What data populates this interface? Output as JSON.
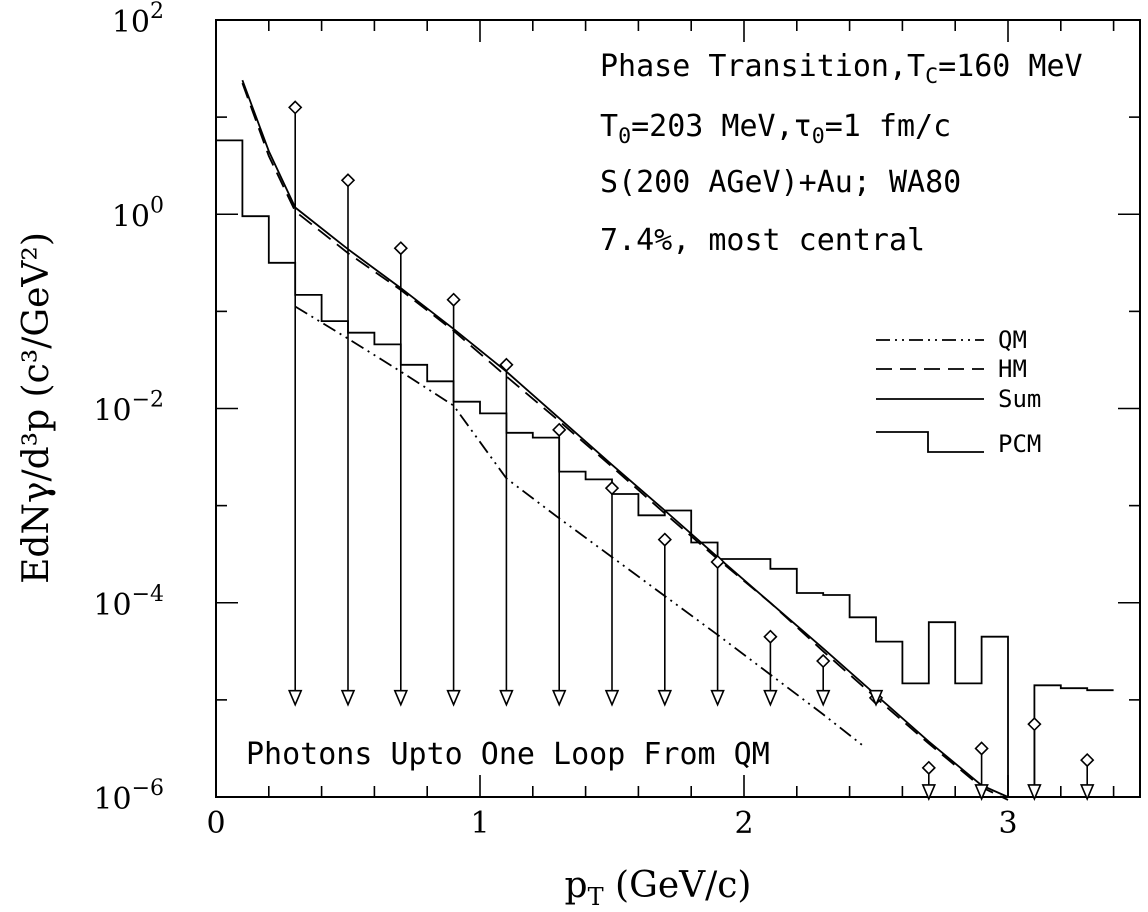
{
  "chart_data": {
    "type": "line",
    "xlabel_main": "p",
    "xlabel_sub": "T",
    "xlabel_rest": " (GeV/c)",
    "ylabel": "EdNγ/d³p (c³/GeV²)",
    "xlim": [
      0,
      3.5
    ],
    "ylim_log10": [
      -6,
      2
    ],
    "y_log_scale": true,
    "x_ticks": [
      {
        "value": 0,
        "label": "0"
      },
      {
        "value": 1,
        "label": "1"
      },
      {
        "value": 2,
        "label": "2"
      },
      {
        "value": 3,
        "label": "3"
      }
    ],
    "y_ticks": [
      {
        "exp": 2,
        "base": "10",
        "power": "2"
      },
      {
        "exp": 0,
        "base": "10",
        "power": "0"
      },
      {
        "exp": -2,
        "base": "10",
        "power": "−2"
      },
      {
        "exp": -4,
        "base": "10",
        "power": "−4"
      },
      {
        "exp": -6,
        "base": "10",
        "power": "−6"
      }
    ],
    "annotations": {
      "line1": "Phase Transition,T",
      "line1_sub": "C",
      "line1_rest": "=160 MeV",
      "line2_a": "T",
      "line2_a_sub": "0",
      "line2_b": "=203 MeV,τ",
      "line2_b_sub": "0",
      "line2_c": "=1 fm/c",
      "line3": "S(200 AGeV)+Au; WA80",
      "line4": "7.4%, most central",
      "bottom": "Photons Upto One Loop From QM"
    },
    "legend": {
      "placement": "right",
      "entries": [
        {
          "name": "QM",
          "style": "dash-dot"
        },
        {
          "name": "HM",
          "style": "dashed"
        },
        {
          "name": "Sum",
          "style": "solid"
        },
        {
          "name": "PCM",
          "style": "histogram"
        }
      ]
    },
    "series": [
      {
        "name": "QM",
        "x": [
          0.3,
          0.5,
          0.7,
          0.9,
          1.1,
          1.3,
          1.5,
          1.7,
          1.9,
          2.1,
          2.3,
          2.45
        ],
        "log10_y": [
          -0.95,
          -1.28,
          -1.62,
          -1.97,
          -2.72,
          -3.13,
          -3.53,
          -3.93,
          -4.33,
          -4.74,
          -5.15,
          -5.47
        ]
      },
      {
        "name": "HM",
        "x": [
          0.1,
          0.2,
          0.3,
          0.5,
          0.7,
          0.9,
          1.1,
          1.3,
          1.5,
          1.7,
          1.9,
          2.1,
          2.3,
          2.5,
          2.7,
          2.9,
          3.0
        ],
        "log10_y": [
          1.35,
          0.6,
          0.03,
          -0.4,
          -0.78,
          -1.2,
          -1.67,
          -2.13,
          -2.6,
          -3.08,
          -3.55,
          -4.0,
          -4.5,
          -4.98,
          -5.45,
          -5.9,
          -6.03
        ]
      },
      {
        "name": "Sum",
        "x": [
          0.1,
          0.2,
          0.3,
          0.5,
          0.7,
          0.9,
          1.1,
          1.3,
          1.5,
          1.7,
          1.9,
          2.1,
          2.3,
          2.5,
          2.7,
          2.9,
          3.0
        ],
        "log10_y": [
          1.38,
          0.65,
          0.07,
          -0.36,
          -0.76,
          -1.18,
          -1.62,
          -2.1,
          -2.58,
          -3.05,
          -3.53,
          -4.0,
          -4.47,
          -4.95,
          -5.43,
          -5.88,
          -6.0
        ]
      },
      {
        "name": "PCM",
        "bin_edges": [
          0.0,
          0.1,
          0.2,
          0.3,
          0.4,
          0.5,
          0.6,
          0.7,
          0.8,
          0.9,
          1.0,
          1.1,
          1.2,
          1.3,
          1.4,
          1.5,
          1.6,
          1.7,
          1.8,
          1.9,
          2.0,
          2.1,
          2.2,
          2.3,
          2.4,
          2.5,
          2.6,
          2.7,
          2.8,
          2.9,
          3.0,
          3.1,
          3.2,
          3.3,
          3.4
        ],
        "log10_y": [
          0.76,
          -0.02,
          -0.5,
          -0.83,
          -1.1,
          -1.22,
          -1.34,
          -1.55,
          -1.72,
          -1.93,
          -2.05,
          -2.25,
          -2.3,
          -2.65,
          -2.73,
          -2.88,
          -3.1,
          -3.05,
          -3.38,
          -3.55,
          -3.55,
          -3.65,
          -3.9,
          -3.92,
          -4.15,
          -4.4,
          -4.83,
          -4.2,
          -4.83,
          -4.35,
          -6.0,
          -4.85,
          -4.88,
          -4.9
        ]
      }
    ],
    "upper_limits": {
      "name": "WA80",
      "x": [
        0.3,
        0.5,
        0.7,
        0.9,
        1.1,
        1.3,
        1.5,
        1.7,
        1.9,
        2.1,
        2.3,
        2.5,
        2.7,
        2.9,
        3.1,
        3.3
      ],
      "log10_y": [
        1.1,
        0.35,
        -0.35,
        -0.88,
        -1.55,
        -2.22,
        -2.82,
        -3.35,
        -3.58,
        -4.35,
        -4.6,
        -4.98,
        -5.7,
        -5.5,
        -5.25,
        -5.62
      ],
      "arrow_tip_log10_y": [
        -5.05,
        -5.05,
        -5.05,
        -5.05,
        -5.05,
        -5.05,
        -5.05,
        -5.05,
        -5.05,
        -5.05,
        -5.05,
        -5.05,
        -6.02,
        -6.02,
        -6.02,
        -6.02
      ]
    }
  }
}
